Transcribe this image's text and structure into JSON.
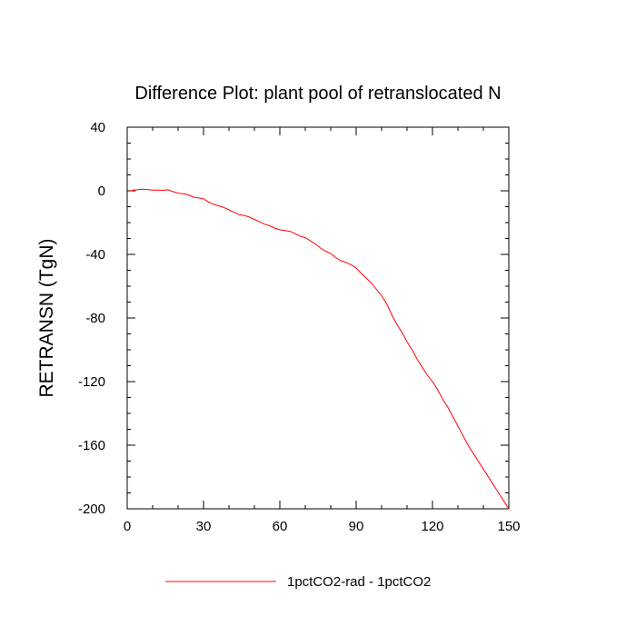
{
  "chart_data": {
    "type": "line",
    "title": "Difference Plot: plant pool of retranslocated N",
    "xlabel": "",
    "ylabel": "RETRANSN  (TgN)",
    "xlim": [
      0,
      150
    ],
    "ylim": [
      -200,
      40
    ],
    "x_ticks": [
      0,
      30,
      60,
      90,
      120,
      150
    ],
    "y_ticks": [
      40,
      0,
      -40,
      -80,
      -120,
      -160,
      -200
    ],
    "grid": false,
    "legend_position": "bottom",
    "series": [
      {
        "name": "1pctCO2-rad - 1pctCO2",
        "color": "#ff0000",
        "x": [
          1,
          3,
          6,
          8,
          10,
          12,
          14,
          16,
          18,
          20,
          22,
          24,
          26,
          28,
          30,
          32,
          34,
          36,
          38,
          40,
          42,
          44,
          46,
          48,
          50,
          52,
          54,
          56,
          58,
          60,
          62,
          64,
          66,
          68,
          70,
          72,
          74,
          76,
          78,
          80,
          82,
          84,
          86,
          88,
          90,
          92,
          94,
          96,
          98,
          100,
          102,
          104,
          106,
          108,
          110,
          112,
          114,
          116,
          118,
          120,
          122,
          124,
          126,
          128,
          130,
          132,
          134,
          136,
          138,
          140,
          142,
          144,
          146,
          148,
          150
        ],
        "values": [
          0,
          0.5,
          1,
          0.8,
          0.4,
          0.5,
          0.3,
          0.6,
          -0.5,
          -1.5,
          -1.8,
          -2.5,
          -4.0,
          -4.5,
          -5.0,
          -7.0,
          -8.5,
          -9.5,
          -10.5,
          -12.0,
          -13.5,
          -15.0,
          -15.5,
          -16.5,
          -18.0,
          -19.5,
          -21.0,
          -22.0,
          -23.5,
          -24.5,
          -25.0,
          -25.5,
          -27.0,
          -28.5,
          -29.5,
          -31.5,
          -33.5,
          -36.0,
          -38.0,
          -39.5,
          -42.0,
          -44.0,
          -45.0,
          -46.5,
          -48.5,
          -52.0,
          -55.0,
          -58.0,
          -62.0,
          -66.0,
          -71.0,
          -78.0,
          -84.0,
          -89.0,
          -95.0,
          -100.0,
          -106.0,
          -111.0,
          -116.0,
          -120.0,
          -125.0,
          -131.0,
          -136.0,
          -142.0,
          -148.0,
          -154.0,
          -160.0,
          -165.0,
          -170.0,
          -175.0,
          -180.0,
          -185.0,
          -190.0,
          -195.0,
          -200.0
        ]
      }
    ]
  }
}
